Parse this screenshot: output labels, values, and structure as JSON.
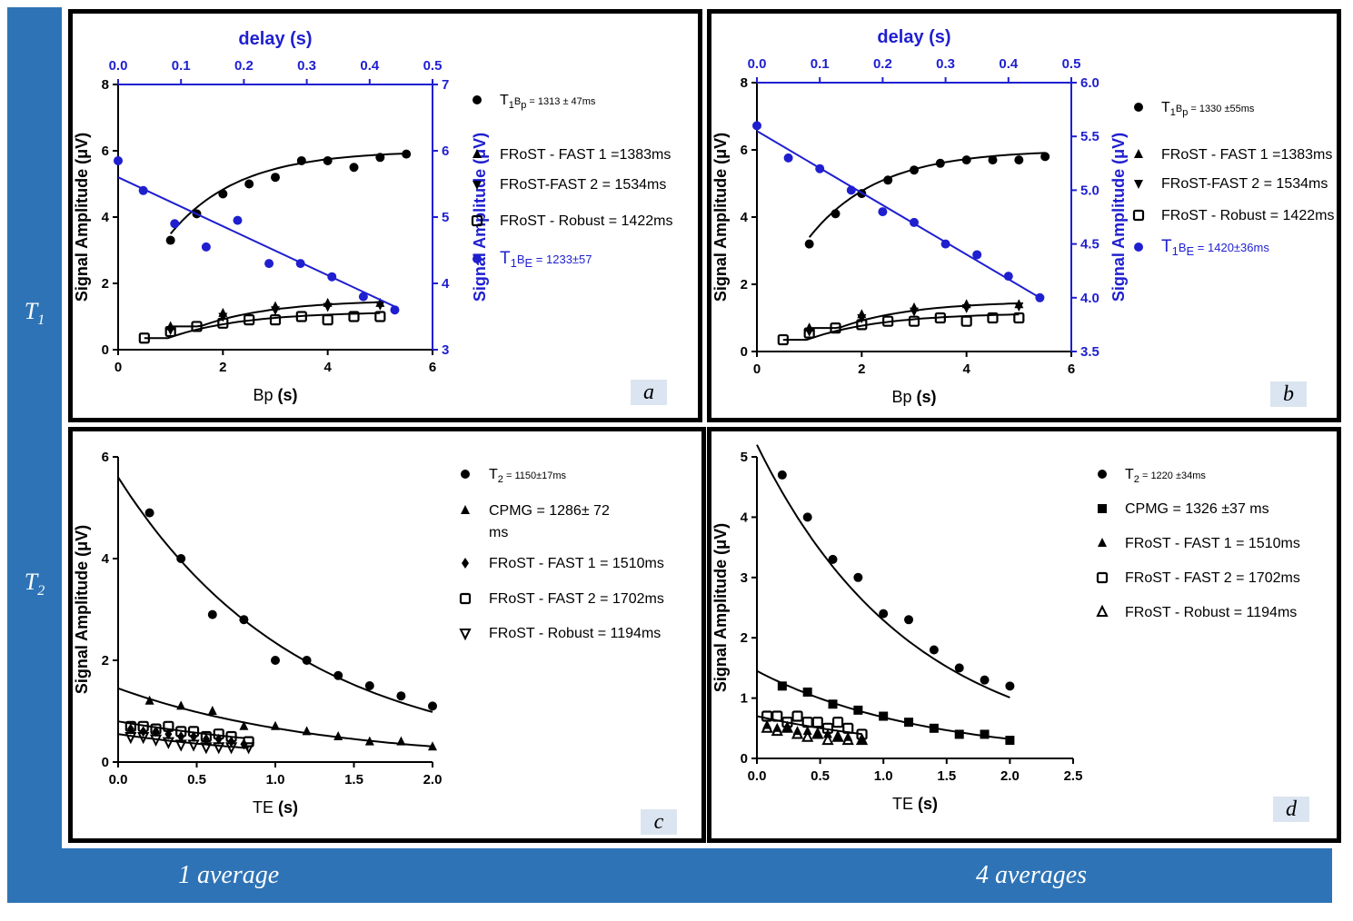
{
  "labels": {
    "row_t1": "T1",
    "row_t2": "T2",
    "col_1": "1 average",
    "col_4": "4 averages"
  },
  "chart_data": [
    {
      "id": "a",
      "type": "scatter",
      "tag": "a",
      "xlabel": "Bp (s)",
      "ylabel": "Signal Amplitude (μV)",
      "xlim": [
        0,
        6
      ],
      "xticks": [
        0,
        2,
        4,
        6
      ],
      "ylim": [
        0,
        8
      ],
      "yticks": [
        0,
        2,
        4,
        6,
        8
      ],
      "x2label": "delay (s)",
      "x2lim": [
        0,
        0.5
      ],
      "x2ticks": [
        "0.0",
        "0.1",
        "0.2",
        "0.3",
        "0.4",
        "0.5"
      ],
      "y2label": "Signal Amplitude (μV)",
      "y2lim": [
        3,
        7
      ],
      "y2ticks": [
        3,
        4,
        5,
        6,
        7
      ],
      "series": [
        {
          "name": "T1Bp = 1313 ± 47ms",
          "marker": "circle",
          "x": [
            1.0,
            1.5,
            2.0,
            2.5,
            3.0,
            3.5,
            4.0,
            4.5,
            5.0,
            5.5
          ],
          "y": [
            3.3,
            4.1,
            4.7,
            5.0,
            5.2,
            5.7,
            5.7,
            5.5,
            5.8,
            5.9
          ],
          "fit": {
            "A": 6.0,
            "B": 2.5,
            "T": 1.313
          }
        },
        {
          "name": "FRoST - FAST 1 =1383ms",
          "marker": "triangle",
          "x": [
            1.0,
            2.0,
            3.0,
            4.0,
            5.0
          ],
          "y": [
            0.7,
            1.1,
            1.3,
            1.4,
            1.4
          ],
          "fit": {
            "A": 1.5,
            "B": 1.2,
            "T": 1.383
          }
        },
        {
          "name": "FRoST-FAST 2 = 1534ms",
          "marker": "triangle-down",
          "x": [
            1.0,
            2.0,
            3.0,
            4.0,
            5.0
          ],
          "y": [
            0.6,
            1.0,
            1.2,
            1.3,
            1.35
          ]
        },
        {
          "name": "FRoST - Robust = 1422ms",
          "marker": "square-open",
          "x": [
            0.5,
            1.0,
            1.5,
            2.0,
            2.5,
            3.0,
            3.5,
            4.0,
            4.5,
            5.0
          ],
          "y": [
            0.35,
            0.55,
            0.7,
            0.8,
            0.9,
            0.9,
            1.0,
            0.9,
            1.0,
            1.0
          ],
          "fit": {
            "A": 1.15,
            "B": 1.1,
            "T": 1.422
          }
        },
        {
          "name": "T1BE = 1233±57",
          "marker": "circle-blue",
          "axis": "secondary",
          "x": [
            0.0,
            0.04,
            0.09,
            0.14,
            0.19,
            0.24,
            0.29,
            0.34,
            0.39,
            0.44
          ],
          "y": [
            5.85,
            5.4,
            4.9,
            4.55,
            4.95,
            4.3,
            4.3,
            4.1,
            3.8,
            3.6
          ],
          "line": [
            [
              0.0,
              5.6
            ],
            [
              0.44,
              3.65
            ]
          ]
        }
      ]
    },
    {
      "id": "b",
      "type": "scatter",
      "tag": "b",
      "xlabel": "Bp (s)",
      "ylabel": "Signal Amplitude (μV)",
      "xlim": [
        0,
        6
      ],
      "xticks": [
        0,
        2,
        4,
        6
      ],
      "ylim": [
        0,
        8
      ],
      "yticks": [
        0,
        2,
        4,
        6,
        8
      ],
      "x2label": "delay (s)",
      "x2lim": [
        0,
        0.5
      ],
      "x2ticks": [
        "0.0",
        "0.1",
        "0.2",
        "0.3",
        "0.4",
        "0.5"
      ],
      "y2label": "Signal Amplitude (μV)",
      "y2lim": [
        3.5,
        6.0
      ],
      "y2ticks": [
        "3.5",
        "4.0",
        "4.5",
        "5.0",
        "5.5",
        "6.0"
      ],
      "series": [
        {
          "name": "T1Bp = 1330 ±55ms",
          "marker": "circle",
          "x": [
            1.0,
            1.5,
            2.0,
            2.5,
            3.0,
            3.5,
            4.0,
            4.5,
            5.0,
            5.5
          ],
          "y": [
            3.2,
            4.1,
            4.7,
            5.1,
            5.4,
            5.6,
            5.7,
            5.7,
            5.7,
            5.8
          ],
          "fit": {
            "A": 6.0,
            "B": 2.6,
            "T": 1.33
          }
        },
        {
          "name": "FRoST - FAST 1 =1383ms",
          "marker": "triangle",
          "x": [
            1.0,
            2.0,
            3.0,
            4.0,
            5.0
          ],
          "y": [
            0.7,
            1.1,
            1.3,
            1.4,
            1.4
          ],
          "fit": {
            "A": 1.5,
            "B": 1.2,
            "T": 1.383
          }
        },
        {
          "name": "FRoST-FAST 2 = 1534ms",
          "marker": "triangle-down",
          "x": [
            1.0,
            2.0,
            3.0,
            4.0,
            5.0
          ],
          "y": [
            0.6,
            1.0,
            1.2,
            1.3,
            1.35
          ]
        },
        {
          "name": "FRoST - Robust = 1422ms",
          "marker": "square-open",
          "x": [
            0.5,
            1.0,
            1.5,
            2.0,
            2.5,
            3.0,
            3.5,
            4.0,
            4.5,
            5.0
          ],
          "y": [
            0.35,
            0.55,
            0.7,
            0.8,
            0.9,
            0.9,
            1.0,
            0.9,
            1.0,
            1.0
          ],
          "fit": {
            "A": 1.15,
            "B": 1.1,
            "T": 1.422
          }
        },
        {
          "name": "T1BE = 1420±36ms",
          "marker": "circle-blue",
          "axis": "secondary",
          "x": [
            0.0,
            0.05,
            0.1,
            0.15,
            0.2,
            0.25,
            0.3,
            0.35,
            0.4,
            0.45
          ],
          "y": [
            5.6,
            5.3,
            5.2,
            5.0,
            4.8,
            4.7,
            4.5,
            4.4,
            4.2,
            4.0
          ],
          "line": [
            [
              0.0,
              5.55
            ],
            [
              0.45,
              4.0
            ]
          ]
        }
      ]
    },
    {
      "id": "c",
      "type": "scatter",
      "tag": "c",
      "xlabel": "TE (s)",
      "ylabel": "Signal Amplitude (μV)",
      "xlim": [
        0,
        2.0
      ],
      "xticks": [
        "0.0",
        "0.5",
        "1.0",
        "1.5",
        "2.0"
      ],
      "ylim": [
        0,
        6
      ],
      "yticks": [
        0,
        2,
        4,
        6
      ],
      "series": [
        {
          "name": "T2 = 1150±17ms",
          "marker": "circle",
          "x": [
            0.2,
            0.4,
            0.6,
            0.8,
            1.0,
            1.2,
            1.4,
            1.6,
            1.8,
            2.0
          ],
          "y": [
            4.9,
            4.0,
            2.9,
            2.8,
            2.0,
            2.0,
            1.7,
            1.5,
            1.3,
            1.1
          ],
          "decay": {
            "A": 5.6,
            "T": 1.15
          }
        },
        {
          "name": "CPMG = 1286± 72 ms",
          "marker": "triangle",
          "x": [
            0.2,
            0.4,
            0.6,
            0.8,
            1.0,
            1.2,
            1.4,
            1.6,
            1.8,
            2.0
          ],
          "y": [
            1.2,
            1.1,
            1.0,
            0.7,
            0.7,
            0.6,
            0.5,
            0.4,
            0.4,
            0.3
          ],
          "decay": {
            "A": 1.45,
            "T": 1.286
          }
        },
        {
          "name": "FRoST - FAST 1 = 1510ms",
          "marker": "diamond",
          "x": [
            0.08,
            0.16,
            0.24,
            0.32,
            0.4,
            0.48,
            0.56,
            0.64,
            0.72,
            0.8
          ],
          "y": [
            0.65,
            0.6,
            0.6,
            0.55,
            0.5,
            0.5,
            0.45,
            0.45,
            0.4,
            0.35
          ],
          "decay": {
            "A": 0.8,
            "T": 1.51
          }
        },
        {
          "name": "FRoST - FAST 2 = 1702ms",
          "marker": "square-open",
          "x": [
            0.08,
            0.16,
            0.24,
            0.32,
            0.4,
            0.48,
            0.56,
            0.64,
            0.72,
            0.83
          ],
          "y": [
            0.7,
            0.7,
            0.65,
            0.7,
            0.6,
            0.6,
            0.5,
            0.55,
            0.5,
            0.4
          ]
        },
        {
          "name": "FRoST - Robust = 1194ms",
          "marker": "triangle-down-open",
          "x": [
            0.08,
            0.16,
            0.24,
            0.32,
            0.4,
            0.48,
            0.56,
            0.64,
            0.72,
            0.83
          ],
          "y": [
            0.5,
            0.5,
            0.45,
            0.4,
            0.35,
            0.35,
            0.3,
            0.3,
            0.3,
            0.3
          ],
          "decay": {
            "A": 0.55,
            "T": 1.194
          }
        }
      ]
    },
    {
      "id": "d",
      "type": "scatter",
      "tag": "d",
      "xlabel": "TE (s)",
      "ylabel": "Signal Amplitude (μV)",
      "xlim": [
        0,
        2.5
      ],
      "xticks": [
        "0.0",
        "0.5",
        "1.0",
        "1.5",
        "2.0",
        "2.5"
      ],
      "ylim": [
        0,
        5
      ],
      "yticks": [
        0,
        1,
        2,
        3,
        4,
        5
      ],
      "series": [
        {
          "name": "T2 = 1220 ±34ms",
          "marker": "circle",
          "x": [
            0.2,
            0.4,
            0.6,
            0.8,
            1.0,
            1.2,
            1.4,
            1.6,
            1.8,
            2.0
          ],
          "y": [
            4.7,
            4.0,
            3.3,
            3.0,
            2.4,
            2.3,
            1.8,
            1.5,
            1.3,
            1.2
          ],
          "decay": {
            "A": 5.2,
            "T": 1.22
          }
        },
        {
          "name": "CPMG = 1326 ±37 ms",
          "marker": "square",
          "x": [
            0.2,
            0.4,
            0.6,
            0.8,
            1.0,
            1.2,
            1.4,
            1.6,
            1.8,
            2.0
          ],
          "y": [
            1.2,
            1.1,
            0.9,
            0.8,
            0.7,
            0.6,
            0.5,
            0.4,
            0.4,
            0.3
          ],
          "decay": {
            "A": 1.45,
            "T": 1.326
          }
        },
        {
          "name": "FRoST - FAST 1  = 1510ms",
          "marker": "triangle",
          "x": [
            0.08,
            0.16,
            0.24,
            0.32,
            0.4,
            0.48,
            0.56,
            0.64,
            0.72,
            0.83
          ],
          "y": [
            0.55,
            0.5,
            0.5,
            0.45,
            0.45,
            0.4,
            0.4,
            0.35,
            0.35,
            0.3
          ],
          "decay": {
            "A": 0.7,
            "T": 1.51
          }
        },
        {
          "name": "FRoST - FAST 2 = 1702ms",
          "marker": "square-open",
          "x": [
            0.08,
            0.16,
            0.24,
            0.32,
            0.4,
            0.48,
            0.56,
            0.64,
            0.72,
            0.83
          ],
          "y": [
            0.7,
            0.7,
            0.6,
            0.7,
            0.6,
            0.6,
            0.5,
            0.6,
            0.5,
            0.4
          ]
        },
        {
          "name": "FRoST - Robust = 1194ms",
          "marker": "triangle-open",
          "x": [
            0.08,
            0.16,
            0.24,
            0.32,
            0.4,
            0.48,
            0.56,
            0.64,
            0.72,
            0.83
          ],
          "y": [
            0.5,
            0.45,
            0.5,
            0.4,
            0.35,
            0.4,
            0.3,
            0.35,
            0.3,
            0.3
          ]
        }
      ]
    }
  ]
}
